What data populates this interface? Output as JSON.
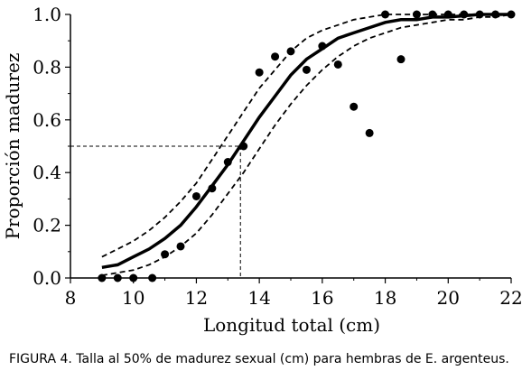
{
  "caption": "FIGURA 4. Talla al 50% de madurez sexual (cm) para hembras de E. argenteus.",
  "chart_data": {
    "type": "scatter",
    "xlabel": "Longitud total (cm)",
    "ylabel": "Proporción madurez",
    "xlim": [
      8,
      22
    ],
    "ylim": [
      0,
      1
    ],
    "x_ticks": [
      "8",
      "10",
      "12",
      "14",
      "16",
      "18",
      "20",
      "22"
    ],
    "y_ticks": [
      "0.0",
      "0.2",
      "0.4",
      "0.6",
      "0.8",
      "1.0"
    ],
    "grid": false,
    "legend": "none",
    "reference_line": {
      "x": 13.4,
      "y": 0.5
    },
    "series": [
      {
        "kind": "points",
        "x": [
          9,
          9.5,
          10,
          10.6,
          11,
          11.5,
          12,
          12.5,
          13,
          13.5,
          14,
          14.5,
          15,
          15.5,
          16,
          16.5,
          17,
          17.5,
          18,
          18.5,
          19,
          19.5,
          20,
          20.5,
          21,
          21.5,
          22
        ],
        "y": [
          0.0,
          0.0,
          0.0,
          0.0,
          0.09,
          0.12,
          0.31,
          0.34,
          0.44,
          0.5,
          0.78,
          0.84,
          0.86,
          0.79,
          0.88,
          0.81,
          0.65,
          0.55,
          1.0,
          0.83,
          1.0,
          1.0,
          1.0,
          1.0,
          1.0,
          1.0,
          1.0
        ]
      },
      {
        "kind": "fit",
        "x": [
          9,
          9.5,
          10,
          10.5,
          11,
          11.5,
          12,
          12.5,
          13,
          13.5,
          14,
          14.5,
          15,
          15.5,
          16,
          16.5,
          17,
          17.5,
          18,
          18.5,
          19,
          19.5,
          20,
          20.5,
          21,
          21.5,
          22
        ],
        "y": [
          0.04,
          0.05,
          0.08,
          0.11,
          0.15,
          0.2,
          0.27,
          0.35,
          0.43,
          0.52,
          0.61,
          0.69,
          0.77,
          0.83,
          0.87,
          0.91,
          0.93,
          0.95,
          0.97,
          0.98,
          0.98,
          0.99,
          0.99,
          0.995,
          1.0,
          1.0,
          1.0
        ]
      },
      {
        "kind": "upper-ci",
        "x": [
          9,
          9.5,
          10,
          10.5,
          11,
          11.5,
          12,
          12.5,
          13,
          13.5,
          14,
          14.5,
          15,
          15.5,
          16,
          16.5,
          17,
          17.5,
          18,
          18.5,
          19,
          19.5,
          20,
          20.5,
          21,
          21.5,
          22
        ],
        "y": [
          0.08,
          0.11,
          0.14,
          0.18,
          0.23,
          0.29,
          0.36,
          0.45,
          0.54,
          0.63,
          0.72,
          0.79,
          0.86,
          0.91,
          0.94,
          0.96,
          0.98,
          0.99,
          1.0,
          1.0,
          1.0,
          1.0,
          1.0,
          1.0,
          1.0,
          1.0,
          1.0
        ]
      },
      {
        "kind": "lower-ci",
        "x": [
          9,
          9.5,
          10,
          10.5,
          11,
          11.5,
          12,
          12.5,
          13,
          13.5,
          14,
          14.5,
          15,
          15.5,
          16,
          16.5,
          17,
          17.5,
          18,
          18.5,
          19,
          19.5,
          20,
          20.5,
          21,
          21.5,
          22
        ],
        "y": [
          0.01,
          0.02,
          0.03,
          0.05,
          0.08,
          0.12,
          0.17,
          0.24,
          0.32,
          0.4,
          0.49,
          0.58,
          0.66,
          0.73,
          0.79,
          0.84,
          0.88,
          0.91,
          0.93,
          0.95,
          0.96,
          0.97,
          0.98,
          0.98,
          0.99,
          0.99,
          1.0
        ]
      }
    ]
  }
}
